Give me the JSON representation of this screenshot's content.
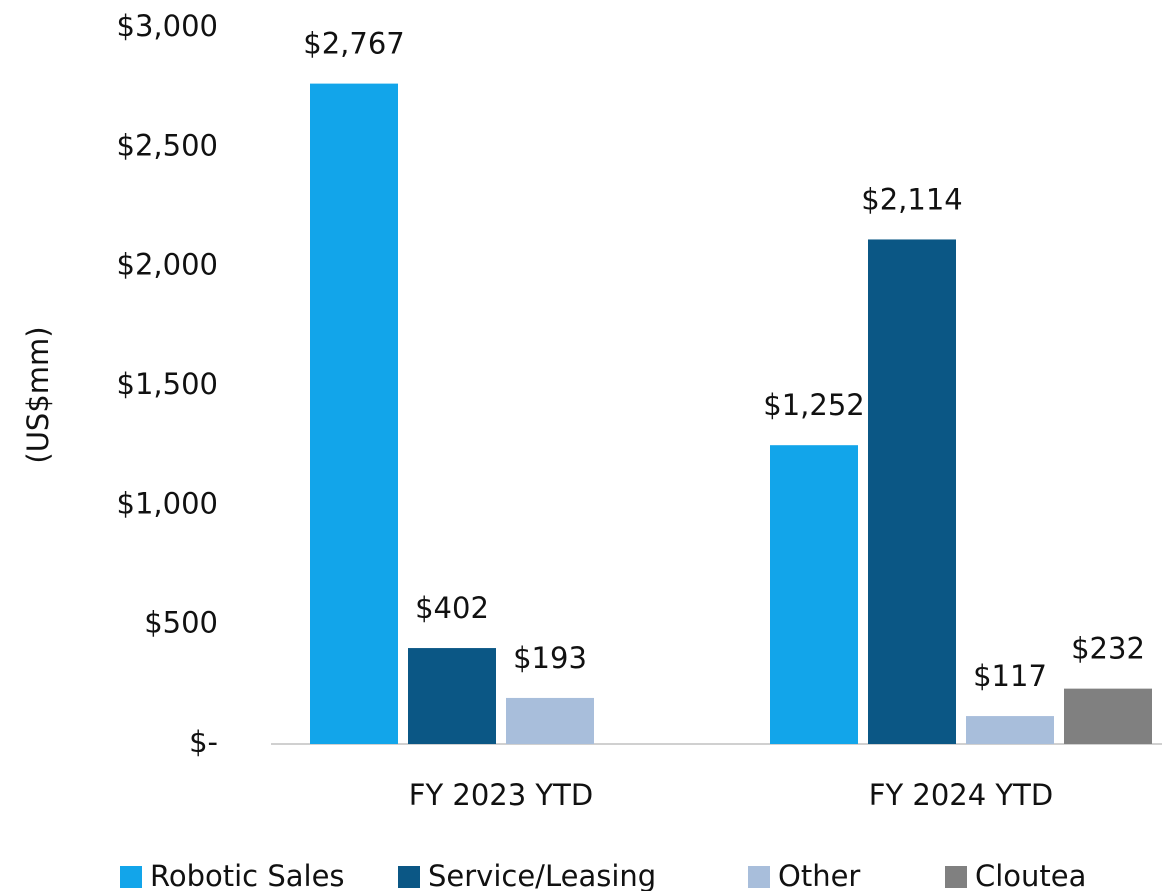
{
  "chart_data": {
    "type": "bar",
    "y_label": "(US$mm)",
    "categories": [
      "FY 2023 YTD",
      "FY 2024 YTD"
    ],
    "series": [
      {
        "name": "Robotic Sales",
        "color": "#12a5ea",
        "values": [
          2767,
          1252
        ],
        "value_labels": [
          "$2,767",
          "$1,252"
        ]
      },
      {
        "name": "Service/Leasing",
        "color": "#0b5785",
        "values": [
          402,
          2114
        ],
        "value_labels": [
          "$402",
          "$2,114"
        ]
      },
      {
        "name": "Other",
        "color": "#a8bedb",
        "values": [
          193,
          117
        ],
        "value_labels": [
          "$193",
          "$117"
        ]
      },
      {
        "name": "Cloutea",
        "color": "#808080",
        "values": [
          null,
          232
        ],
        "value_labels": [
          null,
          "$232"
        ]
      }
    ],
    "ylim": [
      0,
      3000
    ],
    "yticks": [
      {
        "value": 0,
        "label": "$-"
      },
      {
        "value": 500,
        "label": "$500"
      },
      {
        "value": 1000,
        "label": "$1,000"
      },
      {
        "value": 1500,
        "label": "$1,500"
      },
      {
        "value": 2000,
        "label": "$2,000"
      },
      {
        "value": 2500,
        "label": "$2,500"
      },
      {
        "value": 3000,
        "label": "$3,000"
      }
    ],
    "grid": false,
    "legend": "bottom"
  }
}
